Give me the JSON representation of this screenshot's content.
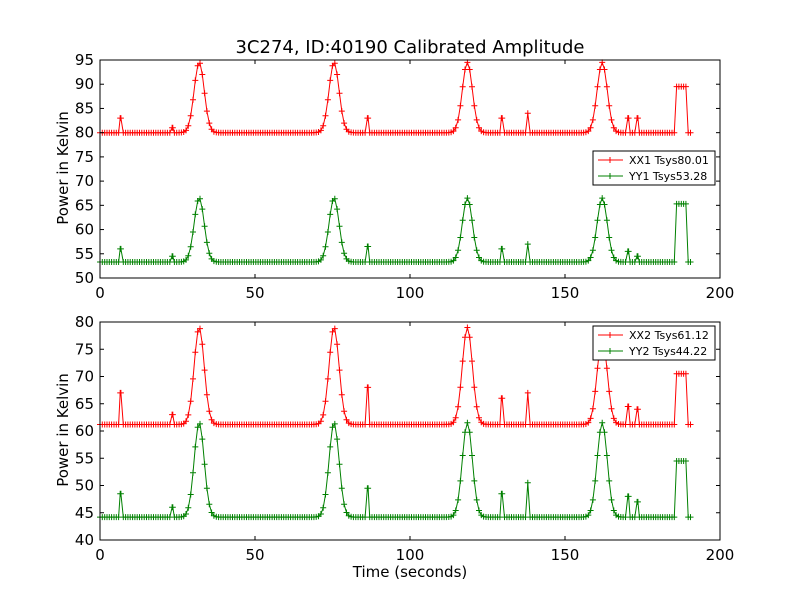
{
  "chart_data": [
    {
      "type": "line",
      "title": "3C274, ID:40190 Calibrated Amplitude",
      "xlabel": "",
      "ylabel": "Power in Kelvin",
      "xlim": [
        0,
        200
      ],
      "ylim": [
        50,
        95
      ],
      "xticks": [
        "0",
        "50",
        "100",
        "150",
        "200"
      ],
      "yticks": [
        "50",
        "55",
        "60",
        "65",
        "70",
        "75",
        "80",
        "85",
        "90",
        "95"
      ],
      "legend_position": "right",
      "series": [
        {
          "name": "XX1 Tsys80.01",
          "color": "#ff0000",
          "baseline": 80,
          "peaks": [
            [
              32,
              94.5
            ],
            [
              75.5,
              94.5
            ],
            [
              118.5,
              94.5
            ],
            [
              162,
              94.5
            ]
          ],
          "spikes": [
            [
              6.5,
              83
            ],
            [
              23.5,
              81
            ],
            [
              86.5,
              83
            ],
            [
              129.5,
              83
            ],
            [
              138,
              84
            ],
            [
              170.5,
              83
            ],
            [
              173.5,
              83
            ]
          ],
          "plateau": [
            186,
            189,
            89.5
          ],
          "x_range": [
            0,
            191
          ]
        },
        {
          "name": "YY1 Tsys53.28",
          "color": "#008000",
          "baseline": 53.3,
          "peaks": [
            [
              32,
              66.5
            ],
            [
              75.5,
              66.5
            ],
            [
              118.5,
              66.5
            ],
            [
              162,
              66.5
            ]
          ],
          "spikes": [
            [
              6.5,
              56
            ],
            [
              23.5,
              54.5
            ],
            [
              86.5,
              56.5
            ],
            [
              129.5,
              56
            ],
            [
              138,
              57
            ],
            [
              170.5,
              55.5
            ],
            [
              173.5,
              54.5
            ]
          ],
          "plateau": [
            186,
            189,
            65.3
          ],
          "x_range": [
            0,
            191
          ]
        }
      ]
    },
    {
      "type": "line",
      "title": "",
      "xlabel": "Time (seconds)",
      "ylabel": "Power in Kelvin",
      "xlim": [
        0,
        200
      ],
      "ylim": [
        40,
        80
      ],
      "xticks": [
        "0",
        "50",
        "100",
        "150",
        "200"
      ],
      "yticks": [
        "40",
        "45",
        "50",
        "55",
        "60",
        "65",
        "70",
        "75",
        "80"
      ],
      "legend_position": "top-right",
      "series": [
        {
          "name": "XX2 Tsys61.12",
          "color": "#ff0000",
          "baseline": 61.2,
          "peaks": [
            [
              32,
              79
            ],
            [
              75.5,
              79
            ],
            [
              118.5,
              79
            ],
            [
              162,
              77
            ]
          ],
          "spikes": [
            [
              6.5,
              67
            ],
            [
              23.5,
              63
            ],
            [
              86.5,
              68
            ],
            [
              129.5,
              66
            ],
            [
              138,
              67
            ],
            [
              170.5,
              64.5
            ],
            [
              173.5,
              64
            ]
          ],
          "plateau": [
            186,
            189,
            70.5
          ],
          "x_range": [
            0,
            191
          ]
        },
        {
          "name": "YY2 Tsys44.22",
          "color": "#008000",
          "baseline": 44.2,
          "peaks": [
            [
              32,
              61.5
            ],
            [
              75.5,
              61.5
            ],
            [
              118.5,
              61.5
            ],
            [
              162,
              61.5
            ]
          ],
          "spikes": [
            [
              6.5,
              48.5
            ],
            [
              23.5,
              46
            ],
            [
              86.5,
              49.5
            ],
            [
              129.5,
              48.5
            ],
            [
              138,
              50.5
            ],
            [
              170.5,
              48
            ],
            [
              173.5,
              47
            ]
          ],
          "plateau": [
            186,
            189,
            54.5
          ],
          "x_range": [
            0,
            191
          ]
        }
      ]
    }
  ]
}
